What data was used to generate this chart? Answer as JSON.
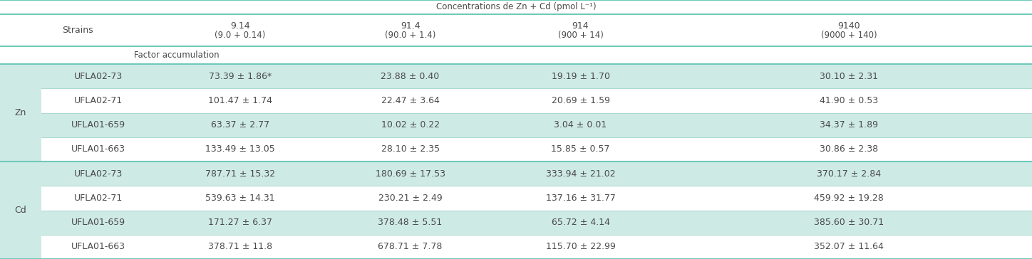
{
  "title": "Concentrations de Zn + Cd (pmol L⁻¹)",
  "col_headers_main": [
    "9.14",
    "91.4",
    "914",
    "9140"
  ],
  "col_headers_sub": [
    "(9.0 + 0.14)",
    "(90.0 + 1.4)",
    "(900 + 14)",
    "(9000 + 140)"
  ],
  "factor_row": "Factor accumulation",
  "strains": [
    "UFLA02-73",
    "UFLA02-71",
    "UFLA01-659",
    "UFLA01-663",
    "UFLA02-73",
    "UFLA02-71",
    "UFLA01-659",
    "UFLA01-663"
  ],
  "data": [
    [
      "73.39 ± 1.86*",
      "23.88 ± 0.40",
      "19.19 ± 1.70",
      "30.10 ± 2.31"
    ],
    [
      "101.47 ± 1.74",
      "22.47 ± 3.64",
      "20.69 ± 1.59",
      "41.90 ± 0.53"
    ],
    [
      "63.37 ± 2.77",
      "10.02 ± 0.22",
      "3.04 ± 0.01",
      "34.37 ± 1.89"
    ],
    [
      "133.49 ± 13.05",
      "28.10 ± 2.35",
      "15.85 ± 0.57",
      "30.86 ± 2.38"
    ],
    [
      "787.71 ± 15.32",
      "180.69 ± 17.53",
      "333.94 ± 21.02",
      "370.17 ± 2.84"
    ],
    [
      "539.63 ± 14.31",
      "230.21 ± 2.49",
      "137.16 ± 31.77",
      "459.92 ± 19.28"
    ],
    [
      "171.27 ± 6.37",
      "378.48 ± 5.51",
      "65.72 ± 4.14",
      "385.60 ± 30.71"
    ],
    [
      "378.71 ± 11.8",
      "678.71 ± 7.78",
      "115.70 ± 22.99",
      "352.07 ± 11.64"
    ]
  ],
  "bg_teal": "#ceeae4",
  "bg_white": "#ffffff",
  "border_teal": "#6fc9bb",
  "text_color": "#4a4a4a",
  "group_col_teal": "#ceeae4"
}
